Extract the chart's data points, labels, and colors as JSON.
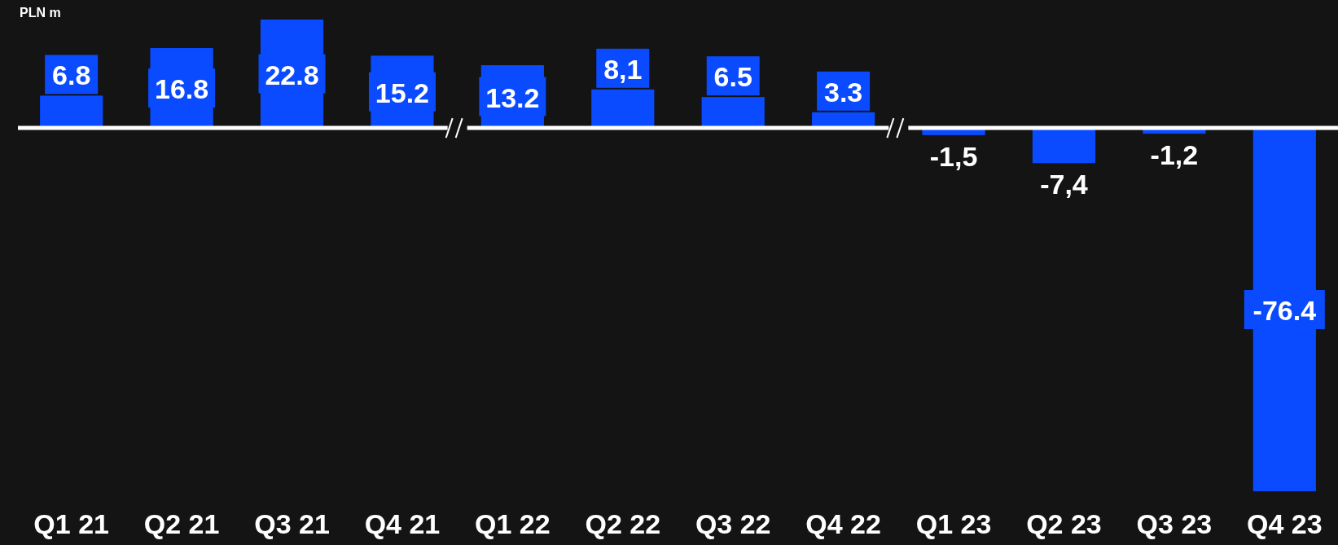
{
  "chart_data": {
    "type": "bar",
    "title": "PLN m",
    "categories": [
      "Q1 21",
      "Q2 21",
      "Q3 21",
      "Q4 21",
      "Q1 22",
      "Q2 22",
      "Q3 22",
      "Q4 22",
      "Q1 23",
      "Q2 23",
      "Q3 23",
      "Q4 23"
    ],
    "values": [
      6.8,
      16.8,
      22.8,
      15.2,
      13.2,
      8.1,
      6.5,
      3.3,
      -1.5,
      -7.4,
      -1.2,
      -76.4
    ],
    "value_labels": [
      "6.8",
      "16.8",
      "22.8",
      "15.2",
      "13.2",
      "8,1",
      "6.5",
      "3.3",
      "-1,5",
      "-7,4",
      "-1,2",
      "-76.4"
    ],
    "color": "#0a4bff",
    "data_labels": true
  }
}
